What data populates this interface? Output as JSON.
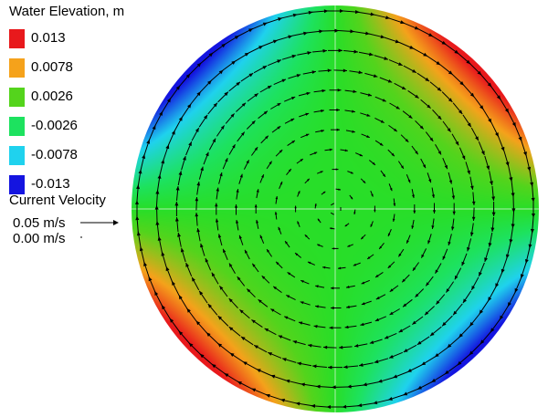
{
  "legend": {
    "title": "Water Elevation, m",
    "items": [
      {
        "label": "0.013",
        "color": "#e8191c"
      },
      {
        "label": "0.0078",
        "color": "#f5a21b"
      },
      {
        "label": "0.0026",
        "color": "#54d41c"
      },
      {
        "label": "-0.0026",
        "color": "#1de25f"
      },
      {
        "label": "-0.0078",
        "color": "#1fd2ee"
      },
      {
        "label": "-0.013",
        "color": "#1414e0"
      }
    ]
  },
  "velocity": {
    "title": "Current Velocity",
    "ref_label": "0.05 m/s",
    "zero_label": "0.00 m/s",
    "ref_speed_ms": 0.05
  },
  "map": {
    "shape": "circular basin",
    "flow": "clockwise gyre",
    "elevation_pattern": "high at upper-right and lower-left rim, low at upper-left and lower-right rim, near zero in centre"
  }
}
